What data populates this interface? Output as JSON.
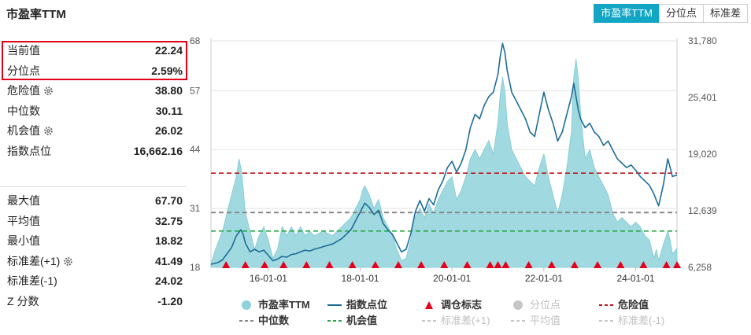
{
  "header": {
    "title": "市盈率TTM"
  },
  "tabs": [
    {
      "label": "市盈率TTM",
      "active": true
    },
    {
      "label": "分位点",
      "active": false
    },
    {
      "label": "标准差",
      "active": false
    }
  ],
  "stats_top": [
    {
      "label": "当前值",
      "value": "22.24",
      "gear": false
    },
    {
      "label": "分位点",
      "value": "2.59%",
      "gear": false
    },
    {
      "label": "危险值",
      "value": "38.80",
      "gear": true
    },
    {
      "label": "中位数",
      "value": "30.11",
      "gear": false
    },
    {
      "label": "机会值",
      "value": "26.02",
      "gear": true
    },
    {
      "label": "指数点位",
      "value": "16,662.16",
      "gear": false
    }
  ],
  "stats_bottom": [
    {
      "label": "最大值",
      "value": "67.70",
      "gear": false
    },
    {
      "label": "平均值",
      "value": "32.75",
      "gear": false
    },
    {
      "label": "最小值",
      "value": "18.82",
      "gear": false
    },
    {
      "label": "标准差(+1)",
      "value": "41.49",
      "gear": true
    },
    {
      "label": "标准差(-1)",
      "value": "24.02",
      "gear": false
    },
    {
      "label": "Z 分数",
      "value": "-1.20",
      "gear": false
    }
  ],
  "colors": {
    "accent": "#12a6c4",
    "pe_area": "#8fd3da",
    "index_line": "#1c6d99",
    "danger": "#c0171b",
    "median": "#888888",
    "opportunity": "#2ba84a",
    "marker": "#e4001d",
    "disabled": "#c6c6c6",
    "highlight": "#e0001a"
  },
  "chart_data": {
    "type": "area",
    "x_ticks": [
      "16-01-01",
      "18-01-01",
      "20-01-01",
      "22-01-01",
      "24-01-01"
    ],
    "x_tick_years": [
      2016,
      2018,
      2020,
      2022,
      2024
    ],
    "x_range": [
      2014.75,
      2024.9
    ],
    "y_left": {
      "ticks": [
        "68",
        "57",
        "44",
        "31",
        "18"
      ],
      "range": [
        18,
        68
      ]
    },
    "y_right": {
      "ticks": [
        "31,780",
        "25,401",
        "19,020",
        "12,639",
        "6,258"
      ],
      "range": [
        6258,
        31780
      ]
    },
    "pe_ttm": [
      [
        2014.75,
        18.8
      ],
      [
        2014.85,
        22
      ],
      [
        2015.0,
        26
      ],
      [
        2015.1,
        30
      ],
      [
        2015.2,
        34
      ],
      [
        2015.3,
        38
      ],
      [
        2015.36,
        42
      ],
      [
        2015.42,
        39
      ],
      [
        2015.5,
        30
      ],
      [
        2015.6,
        26
      ],
      [
        2015.7,
        22
      ],
      [
        2015.8,
        25
      ],
      [
        2015.9,
        27
      ],
      [
        2016.0,
        24
      ],
      [
        2016.1,
        20
      ],
      [
        2016.2,
        22
      ],
      [
        2016.3,
        27
      ],
      [
        2016.4,
        25
      ],
      [
        2016.5,
        27
      ],
      [
        2016.6,
        25
      ],
      [
        2016.7,
        27
      ],
      [
        2016.8,
        25
      ],
      [
        2016.9,
        26
      ],
      [
        2017.0,
        25
      ],
      [
        2017.2,
        26
      ],
      [
        2017.4,
        25
      ],
      [
        2017.6,
        27
      ],
      [
        2017.8,
        29
      ],
      [
        2017.9,
        31
      ],
      [
        2018.0,
        33
      ],
      [
        2018.05,
        35
      ],
      [
        2018.1,
        36
      ],
      [
        2018.2,
        34
      ],
      [
        2018.3,
        31
      ],
      [
        2018.4,
        33
      ],
      [
        2018.5,
        29
      ],
      [
        2018.6,
        27
      ],
      [
        2018.7,
        25
      ],
      [
        2018.8,
        22
      ],
      [
        2018.9,
        19.5
      ],
      [
        2019.0,
        20
      ],
      [
        2019.1,
        24
      ],
      [
        2019.2,
        29
      ],
      [
        2019.3,
        31
      ],
      [
        2019.4,
        29
      ],
      [
        2019.5,
        32
      ],
      [
        2019.6,
        30
      ],
      [
        2019.7,
        33
      ],
      [
        2019.8,
        35
      ],
      [
        2019.9,
        37
      ],
      [
        2020.0,
        38
      ],
      [
        2020.1,
        33
      ],
      [
        2020.2,
        35
      ],
      [
        2020.3,
        38
      ],
      [
        2020.4,
        42
      ],
      [
        2020.5,
        44
      ],
      [
        2020.6,
        42
      ],
      [
        2020.7,
        44
      ],
      [
        2020.8,
        46
      ],
      [
        2020.9,
        43
      ],
      [
        2021.0,
        50
      ],
      [
        2021.05,
        56
      ],
      [
        2021.1,
        60
      ],
      [
        2021.15,
        57
      ],
      [
        2021.2,
        50
      ],
      [
        2021.3,
        44
      ],
      [
        2021.4,
        42
      ],
      [
        2021.5,
        40
      ],
      [
        2021.6,
        38
      ],
      [
        2021.7,
        37
      ],
      [
        2021.8,
        36
      ],
      [
        2021.9,
        40
      ],
      [
        2022.0,
        43
      ],
      [
        2022.1,
        38
      ],
      [
        2022.2,
        34
      ],
      [
        2022.3,
        30
      ],
      [
        2022.4,
        34
      ],
      [
        2022.5,
        40
      ],
      [
        2022.6,
        48
      ],
      [
        2022.65,
        60
      ],
      [
        2022.7,
        64
      ],
      [
        2022.75,
        60
      ],
      [
        2022.8,
        52
      ],
      [
        2022.9,
        42
      ],
      [
        2023.0,
        44
      ],
      [
        2023.1,
        40
      ],
      [
        2023.2,
        38
      ],
      [
        2023.3,
        36
      ],
      [
        2023.4,
        34
      ],
      [
        2023.5,
        30
      ],
      [
        2023.6,
        28
      ],
      [
        2023.7,
        29
      ],
      [
        2023.8,
        28
      ],
      [
        2023.9,
        27
      ],
      [
        2024.0,
        28
      ],
      [
        2024.1,
        27
      ],
      [
        2024.2,
        25
      ],
      [
        2024.3,
        24
      ],
      [
        2024.35,
        22
      ],
      [
        2024.4,
        20
      ],
      [
        2024.45,
        22
      ],
      [
        2024.5,
        19.5
      ],
      [
        2024.6,
        23
      ],
      [
        2024.7,
        26
      ],
      [
        2024.75,
        24
      ],
      [
        2024.8,
        21
      ],
      [
        2024.9,
        22.2
      ]
    ],
    "index_points": [
      [
        2014.75,
        6600
      ],
      [
        2014.9,
        6800
      ],
      [
        2015.0,
        7100
      ],
      [
        2015.1,
        7800
      ],
      [
        2015.2,
        8500
      ],
      [
        2015.3,
        9800
      ],
      [
        2015.4,
        10500
      ],
      [
        2015.45,
        10000
      ],
      [
        2015.5,
        9000
      ],
      [
        2015.6,
        8000
      ],
      [
        2015.7,
        8300
      ],
      [
        2015.8,
        8000
      ],
      [
        2015.9,
        8200
      ],
      [
        2016.0,
        7600
      ],
      [
        2016.1,
        7000
      ],
      [
        2016.2,
        7200
      ],
      [
        2016.3,
        7500
      ],
      [
        2016.4,
        7400
      ],
      [
        2016.5,
        7700
      ],
      [
        2016.6,
        7800
      ],
      [
        2016.7,
        8000
      ],
      [
        2016.8,
        8200
      ],
      [
        2016.9,
        8100
      ],
      [
        2017.0,
        8300
      ],
      [
        2017.2,
        8600
      ],
      [
        2017.4,
        8900
      ],
      [
        2017.6,
        9500
      ],
      [
        2017.8,
        10500
      ],
      [
        2017.9,
        11500
      ],
      [
        2018.0,
        12500
      ],
      [
        2018.1,
        13500
      ],
      [
        2018.2,
        13000
      ],
      [
        2018.3,
        12200
      ],
      [
        2018.4,
        12700
      ],
      [
        2018.5,
        11200
      ],
      [
        2018.6,
        10500
      ],
      [
        2018.7,
        10000
      ],
      [
        2018.8,
        9000
      ],
      [
        2018.9,
        8000
      ],
      [
        2019.0,
        8300
      ],
      [
        2019.1,
        10000
      ],
      [
        2019.2,
        12500
      ],
      [
        2019.3,
        13800
      ],
      [
        2019.4,
        12600
      ],
      [
        2019.5,
        14000
      ],
      [
        2019.6,
        13300
      ],
      [
        2019.7,
        15000
      ],
      [
        2019.8,
        16000
      ],
      [
        2019.9,
        17500
      ],
      [
        2020.0,
        18200
      ],
      [
        2020.1,
        17000
      ],
      [
        2020.2,
        18000
      ],
      [
        2020.3,
        19500
      ],
      [
        2020.4,
        22000
      ],
      [
        2020.5,
        23500
      ],
      [
        2020.6,
        23000
      ],
      [
        2020.7,
        24500
      ],
      [
        2020.8,
        25500
      ],
      [
        2020.9,
        26000
      ],
      [
        2021.0,
        28000
      ],
      [
        2021.05,
        30000
      ],
      [
        2021.1,
        31500
      ],
      [
        2021.15,
        30500
      ],
      [
        2021.2,
        28500
      ],
      [
        2021.3,
        26000
      ],
      [
        2021.4,
        25000
      ],
      [
        2021.5,
        24000
      ],
      [
        2021.6,
        23000
      ],
      [
        2021.7,
        21500
      ],
      [
        2021.8,
        21000
      ],
      [
        2021.9,
        23500
      ],
      [
        2022.0,
        26000
      ],
      [
        2022.1,
        24000
      ],
      [
        2022.2,
        22500
      ],
      [
        2022.3,
        20500
      ],
      [
        2022.4,
        21500
      ],
      [
        2022.5,
        23500
      ],
      [
        2022.6,
        25500
      ],
      [
        2022.65,
        27000
      ],
      [
        2022.7,
        25500
      ],
      [
        2022.75,
        24000
      ],
      [
        2022.8,
        23000
      ],
      [
        2022.9,
        22000
      ],
      [
        2023.0,
        22500
      ],
      [
        2023.1,
        21500
      ],
      [
        2023.2,
        21000
      ],
      [
        2023.3,
        20000
      ],
      [
        2023.4,
        20500
      ],
      [
        2023.5,
        19500
      ],
      [
        2023.6,
        18500
      ],
      [
        2023.7,
        18000
      ],
      [
        2023.8,
        17500
      ],
      [
        2023.9,
        17800
      ],
      [
        2024.0,
        17200
      ],
      [
        2024.1,
        16500
      ],
      [
        2024.2,
        16000
      ],
      [
        2024.3,
        15500
      ],
      [
        2024.35,
        15000
      ],
      [
        2024.4,
        14500
      ],
      [
        2024.45,
        13800
      ],
      [
        2024.5,
        13200
      ],
      [
        2024.6,
        15500
      ],
      [
        2024.7,
        18500
      ],
      [
        2024.75,
        17500
      ],
      [
        2024.8,
        16500
      ],
      [
        2024.9,
        16662
      ]
    ],
    "danger_value": 38.8,
    "median_value": 30.11,
    "opportunity_value": 26.02,
    "rebalance_markers": [
      2015.08,
      2015.5,
      2015.92,
      2016.33,
      2016.83,
      2017.33,
      2017.83,
      2018.33,
      2018.83,
      2019.33,
      2019.83,
      2020.33,
      2020.83,
      2021.0,
      2021.17,
      2021.67,
      2022.17,
      2022.67,
      2023.17,
      2023.67,
      2024.17,
      2024.67,
      2024.9
    ],
    "legend": [
      {
        "name": "市盈率TTM",
        "kind": "circle",
        "color": "#8fd3da",
        "enabled": true
      },
      {
        "name": "指数点位",
        "kind": "line",
        "color": "#1c6d99",
        "enabled": true
      },
      {
        "name": "调仓标志",
        "kind": "triangle",
        "color": "#e4001d",
        "enabled": true
      },
      {
        "name": "分位点",
        "kind": "circle",
        "color": "#c6c6c6",
        "enabled": false
      },
      {
        "name": "危险值",
        "kind": "dash",
        "color": "#c0171b",
        "enabled": true
      },
      {
        "name": "中位数",
        "kind": "dash",
        "color": "#888888",
        "enabled": true
      },
      {
        "name": "机会值",
        "kind": "dash",
        "color": "#2ba84a",
        "enabled": true
      },
      {
        "name": "标准差(+1)",
        "kind": "dash",
        "color": "#c6c6c6",
        "enabled": false
      },
      {
        "name": "平均值",
        "kind": "dash",
        "color": "#c6c6c6",
        "enabled": false
      },
      {
        "name": "标准差(-1)",
        "kind": "dash",
        "color": "#c6c6c6",
        "enabled": false
      }
    ]
  }
}
